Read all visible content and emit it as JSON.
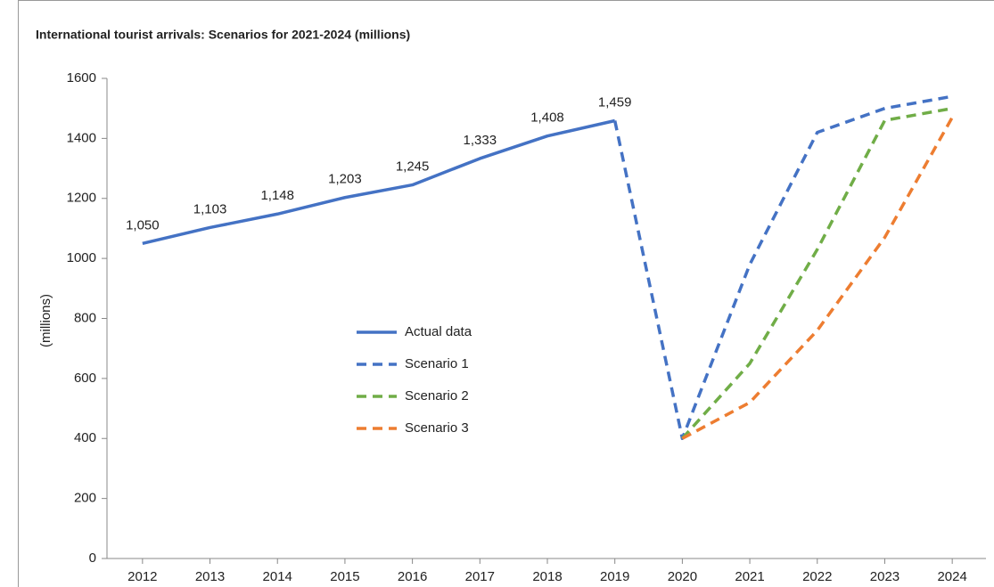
{
  "chart_data": {
    "type": "line",
    "title": "International tourist arrivals: Scenarios for 2021-2024 (millions)",
    "y_label": "(millions)",
    "categories": [
      "2012",
      "2013",
      "2014",
      "2015",
      "2016",
      "2017",
      "2018",
      "2019",
      "2020",
      "2021",
      "2022",
      "2023",
      "2024"
    ],
    "ylim": [
      0,
      1600
    ],
    "yticks": [
      0,
      200,
      400,
      600,
      800,
      1000,
      1200,
      1400,
      1600
    ],
    "legend": "center",
    "series": [
      {
        "name": "Actual data",
        "color": "#4472c4",
        "dashed": false,
        "values": [
          1050,
          1103,
          1148,
          1203,
          1245,
          1333,
          1408,
          1459,
          null,
          null,
          null,
          null,
          null
        ],
        "value_labels": [
          "1,050",
          "1,103",
          "1,148",
          "1,203",
          "1,245",
          "1,333",
          "1,408",
          "1,459",
          null,
          null,
          null,
          null,
          null
        ]
      },
      {
        "name": "Scenario 1",
        "color": "#4472c4",
        "dashed": true,
        "values": [
          null,
          null,
          null,
          null,
          null,
          null,
          null,
          1459,
          400,
          980,
          1420,
          1500,
          1540
        ]
      },
      {
        "name": "Scenario 2",
        "color": "#70ad47",
        "dashed": true,
        "values": [
          null,
          null,
          null,
          null,
          null,
          null,
          null,
          null,
          400,
          650,
          1030,
          1460,
          1500
        ]
      },
      {
        "name": "Scenario 3",
        "color": "#ed7d31",
        "dashed": true,
        "values": [
          null,
          null,
          null,
          null,
          null,
          null,
          null,
          null,
          400,
          520,
          760,
          1070,
          1470
        ]
      }
    ]
  }
}
